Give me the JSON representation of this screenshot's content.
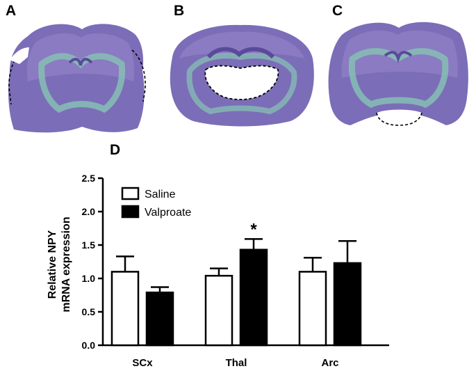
{
  "panels": {
    "a": "A",
    "b": "B",
    "c": "C",
    "d": "D"
  },
  "colors": {
    "tissue": "#7c6db8",
    "tissue_light": "#9485c8",
    "white_matter": "#86c0b4",
    "lesion_outline": "#000000",
    "bar_saline": "#ffffff",
    "bar_valproate": "#000000"
  },
  "chart_data": {
    "type": "bar",
    "categories": [
      "SCx",
      "Thal",
      "Arc"
    ],
    "series": [
      {
        "name": "Saline",
        "values": [
          1.1,
          1.04,
          1.1
        ],
        "errors": [
          0.23,
          0.11,
          0.21
        ]
      },
      {
        "name": "Valproate",
        "values": [
          0.79,
          1.43,
          1.23
        ],
        "errors": [
          0.08,
          0.16,
          0.33
        ]
      }
    ],
    "ylabel_lines": [
      "Relative NPY",
      "mRNA expression"
    ],
    "xlabel": "",
    "ylim": [
      0,
      2.5
    ],
    "yticks": [
      "0.0",
      "0.5",
      "1.0",
      "1.5",
      "2.0",
      "2.5"
    ],
    "annotations": [
      {
        "category": "Thal",
        "series": "Valproate",
        "text": "*"
      }
    ],
    "legend": "top-left",
    "grid": false
  }
}
